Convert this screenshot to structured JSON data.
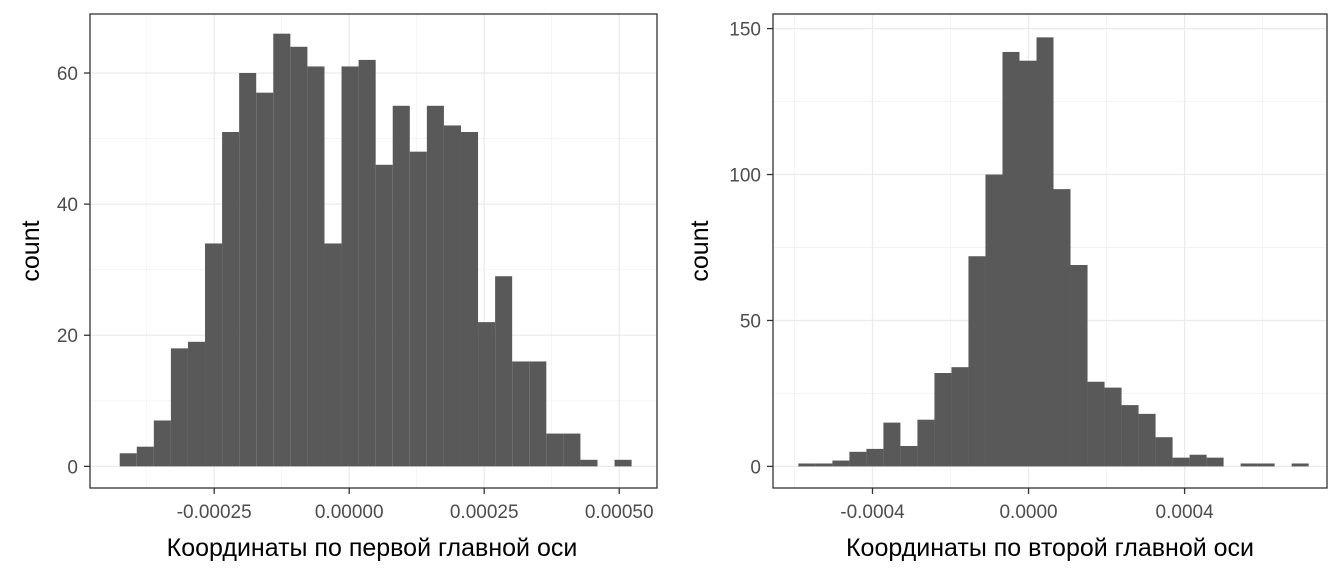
{
  "colors": {
    "bar": "#595959",
    "grid": "#ebebeb",
    "border": "#333333",
    "background": "#ffffff"
  },
  "chart_data": [
    {
      "type": "bar",
      "subtype": "histogram",
      "xlabel": "Координаты по первой главной оси",
      "ylabel": "count",
      "xlim": [
        -0.00048,
        0.00057
      ],
      "ylim": [
        -3.3,
        69
      ],
      "x_ticks": [
        -0.00025,
        0,
        0.00025,
        0.0005
      ],
      "x_tick_labels": [
        "-0.00025",
        "0.00000",
        "0.00025",
        "0.00050"
      ],
      "y_ticks": [
        0,
        20,
        40,
        60
      ],
      "y_tick_labels": [
        "0",
        "20",
        "40",
        "60"
      ],
      "grid": true,
      "bins": {
        "start": -0.000425,
        "width": 3.16e-05,
        "counts": [
          2,
          3,
          7,
          18,
          19,
          34,
          51,
          60,
          57,
          66,
          64,
          61,
          34,
          61,
          62,
          46,
          55,
          48,
          55,
          52,
          51,
          22,
          29,
          16,
          16,
          5,
          5,
          1,
          0,
          1
        ]
      }
    },
    {
      "type": "bar",
      "subtype": "histogram",
      "xlabel": "Координаты по второй главной оси",
      "ylabel": "count",
      "xlim": [
        -0.000655,
        0.000765
      ],
      "ylim": [
        -7.4,
        155
      ],
      "x_ticks": [
        -0.0004,
        0,
        0.0004
      ],
      "x_tick_labels": [
        "-0.0004",
        "0.0000",
        "0.0004"
      ],
      "y_ticks": [
        0,
        50,
        100,
        150
      ],
      "y_tick_labels": [
        "0",
        "50",
        "100",
        "150"
      ],
      "grid": true,
      "bins": {
        "start": -0.00059,
        "width": 4.36e-05,
        "counts": [
          1,
          1,
          2,
          5,
          6,
          15,
          7,
          16,
          32,
          34,
          72,
          100,
          142,
          139,
          147,
          95,
          69,
          29,
          27,
          21,
          18,
          10,
          3,
          4,
          3,
          0,
          1,
          1,
          0,
          1
        ]
      }
    }
  ]
}
